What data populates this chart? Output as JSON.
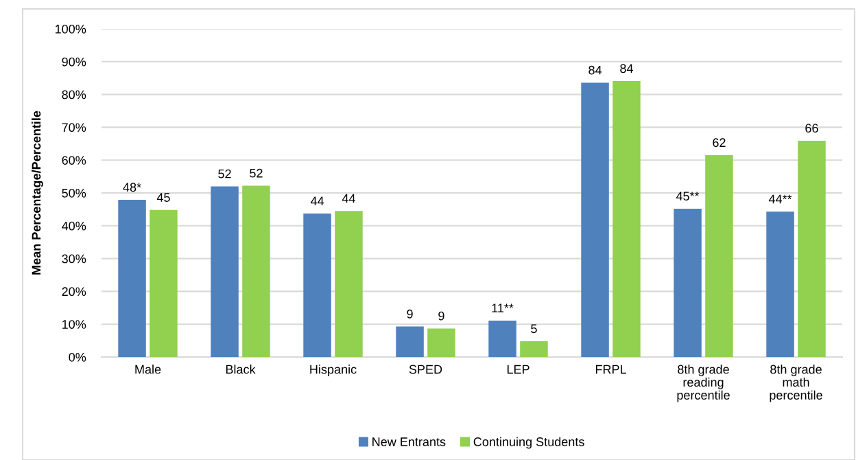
{
  "chart_data": {
    "type": "bar",
    "ylabel": "Mean Percentage/Percentile",
    "categories": [
      "Male",
      "Black",
      "Hispanic",
      "SPED",
      "LEP",
      "FRPL",
      "8th grade\nreading\npercentile",
      "8th grade\nmath\npercentile"
    ],
    "series": [
      {
        "name": "New Entrants",
        "color": "#4f81bd",
        "values": [
          47.9,
          52.0,
          43.7,
          9.3,
          11.1,
          83.6,
          45.2,
          44.3
        ],
        "value_labels": [
          "48*",
          "52",
          "44",
          "9",
          "11**",
          "84",
          "45**",
          "44**"
        ]
      },
      {
        "name": "Continuing Students",
        "color": "#92d050",
        "values": [
          44.8,
          52.2,
          44.5,
          8.7,
          4.8,
          84.1,
          61.5,
          65.9
        ],
        "value_labels": [
          "45",
          "52",
          "44",
          "9",
          "5",
          "84",
          "62",
          "66"
        ]
      }
    ],
    "ylim": [
      0,
      100
    ],
    "yticks": [
      {
        "value": 0,
        "label": "0%"
      },
      {
        "value": 10,
        "label": "10%"
      },
      {
        "value": 20,
        "label": "20%"
      },
      {
        "value": 30,
        "label": "30%"
      },
      {
        "value": 40,
        "label": "40%"
      },
      {
        "value": 50,
        "label": "50%"
      },
      {
        "value": 60,
        "label": "60%"
      },
      {
        "value": 70,
        "label": "70%"
      },
      {
        "value": 80,
        "label": "80%"
      },
      {
        "value": 90,
        "label": "90%"
      },
      {
        "value": 100,
        "label": "100%"
      }
    ],
    "grid": "y",
    "legend": "bottom"
  }
}
